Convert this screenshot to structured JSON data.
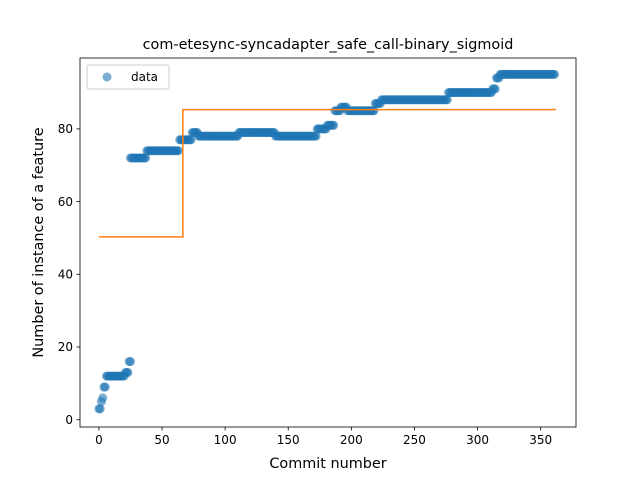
{
  "chart_data": {
    "type": "scatter",
    "title": "com-etesync-syncadapter_safe_call-binary_sigmoid",
    "xlabel": "Commit number",
    "ylabel": "Number of instance of a feature",
    "xlim": [
      -15,
      378
    ],
    "ylim": [
      -2,
      99.5
    ],
    "xticks": [
      0,
      50,
      100,
      150,
      200,
      250,
      300,
      350
    ],
    "yticks": [
      0,
      20,
      40,
      60,
      80
    ],
    "grid": false,
    "legend": {
      "placement": "upper-left",
      "entries": [
        "data"
      ]
    },
    "colors": {
      "points": "#1f77b4",
      "fit": "#ff7f0e"
    },
    "series": [
      {
        "name": "data",
        "kind": "points",
        "segments": [
          [
            0,
            0,
            3
          ],
          [
            1,
            1,
            3
          ],
          [
            2,
            2,
            5
          ],
          [
            3,
            3,
            6
          ],
          [
            4,
            5,
            9
          ],
          [
            6,
            18,
            12
          ],
          [
            19,
            20,
            12
          ],
          [
            21,
            23,
            13
          ],
          [
            24,
            25,
            16
          ],
          [
            25,
            37,
            72
          ],
          [
            38,
            63,
            74
          ],
          [
            64,
            73,
            77
          ],
          [
            74,
            78,
            79
          ],
          [
            79,
            110,
            78
          ],
          [
            111,
            139,
            79
          ],
          [
            140,
            172,
            78
          ],
          [
            173,
            180,
            80
          ],
          [
            181,
            186,
            81
          ],
          [
            187,
            191,
            85
          ],
          [
            192,
            196,
            86
          ],
          [
            197,
            218,
            85
          ],
          [
            219,
            223,
            87
          ],
          [
            224,
            276,
            88
          ],
          [
            277,
            311,
            90
          ],
          [
            312,
            314,
            91
          ],
          [
            315,
            317,
            94
          ],
          [
            318,
            361,
            95
          ]
        ]
      },
      {
        "name": "",
        "kind": "step-line",
        "points": [
          [
            0,
            50.3
          ],
          [
            66.5,
            50.3
          ],
          [
            66.5,
            85.3
          ],
          [
            362,
            85.3
          ]
        ]
      }
    ]
  }
}
